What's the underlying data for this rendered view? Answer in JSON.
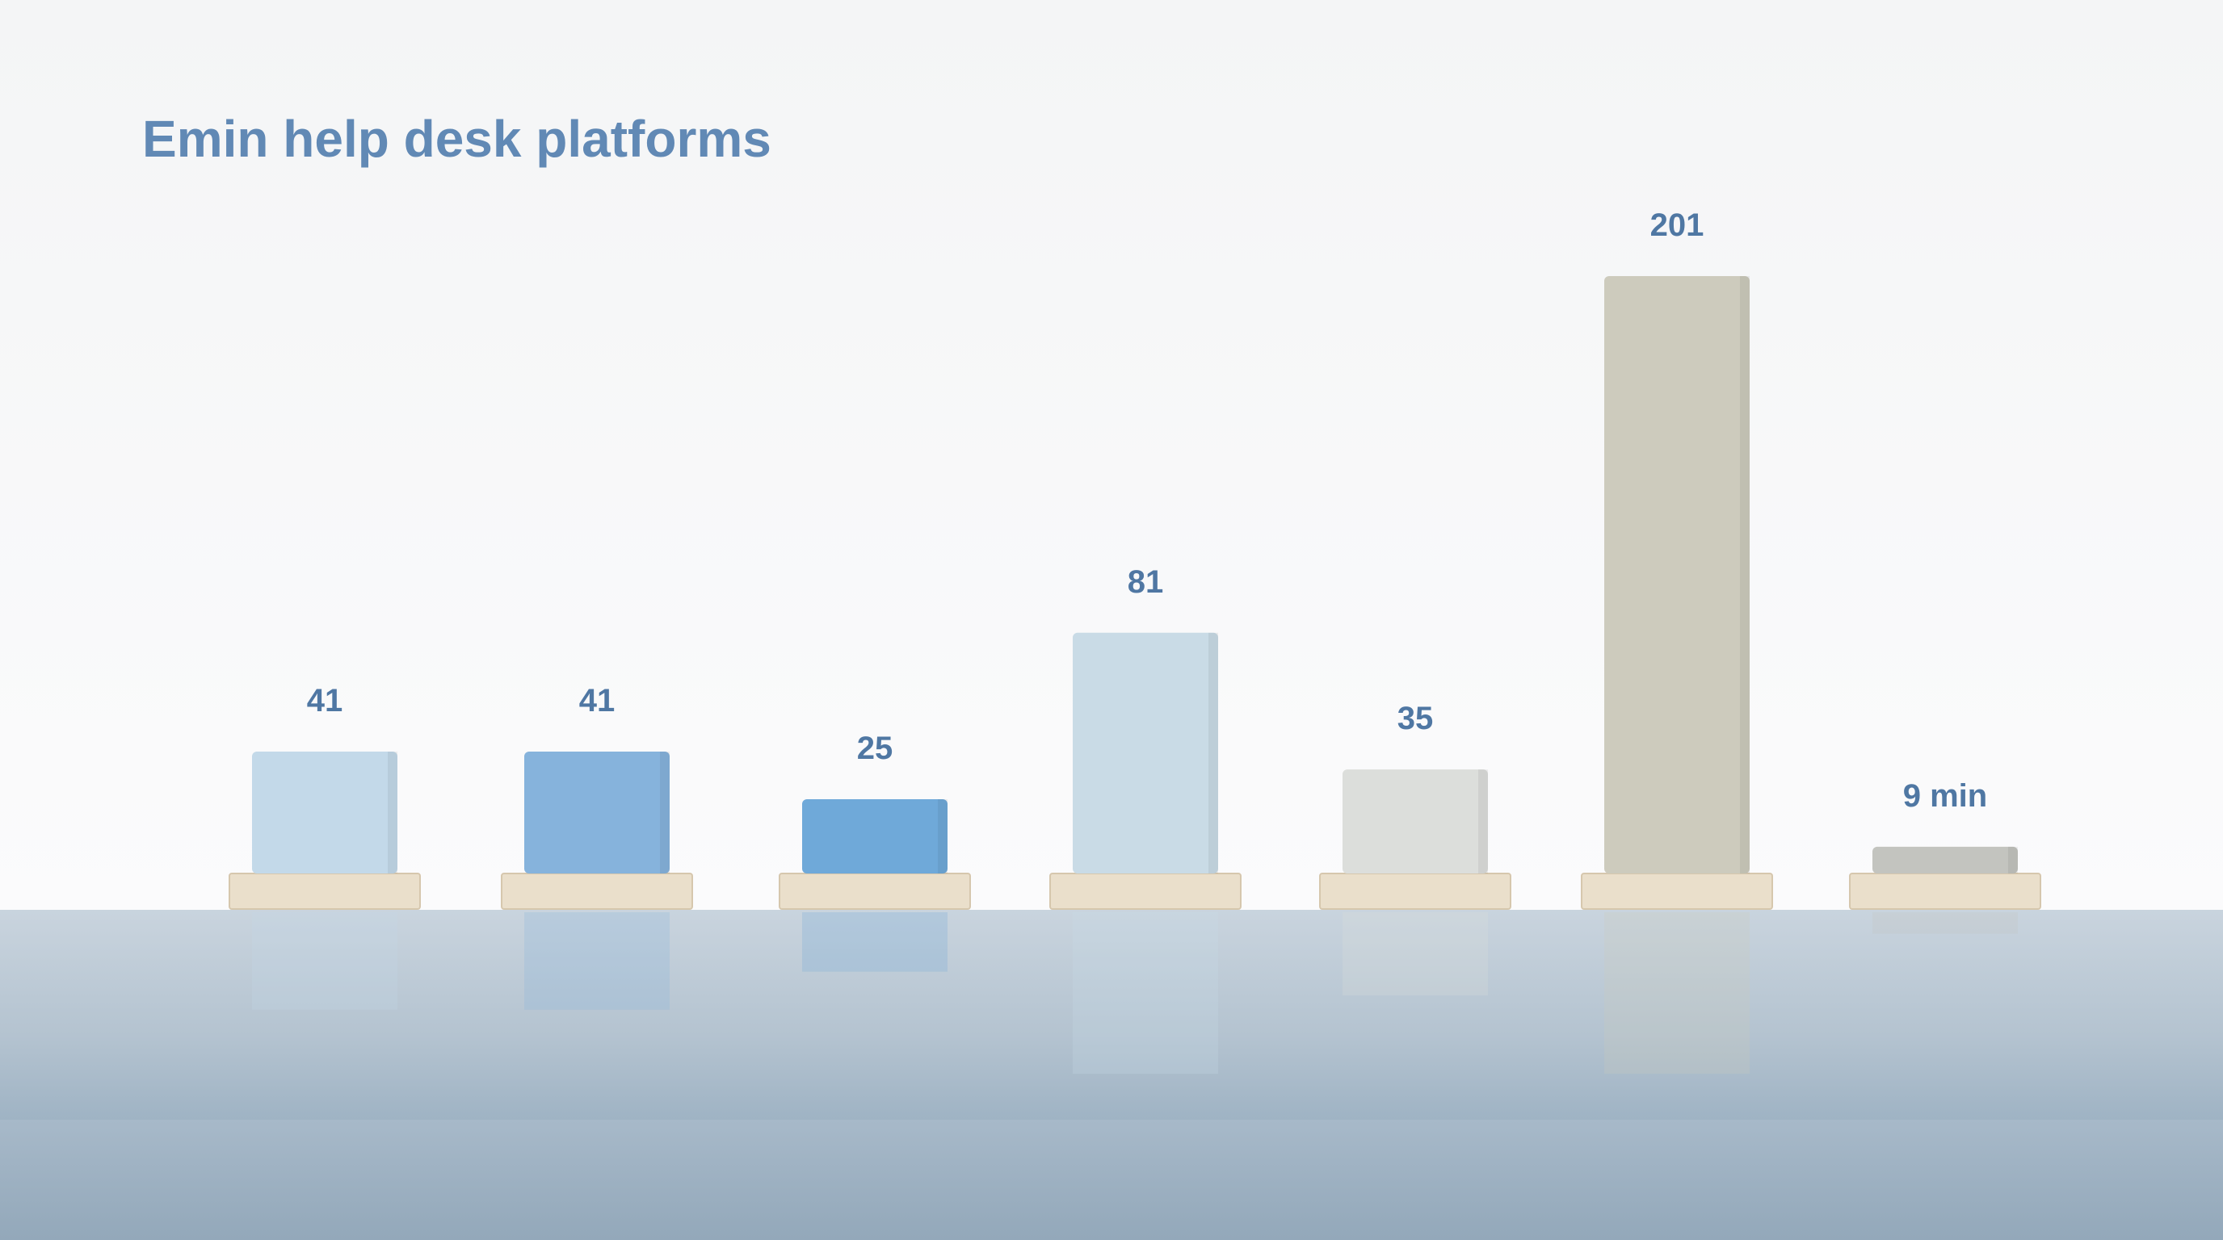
{
  "chart_data": {
    "type": "bar",
    "title": "Emin help desk platforms",
    "values": [
      41,
      41,
      25,
      81,
      35,
      201,
      9
    ],
    "value_labels": [
      "41",
      "41",
      "25",
      "81",
      "35",
      "201",
      "9 min"
    ],
    "colors": [
      "#c3d9e9",
      "#86b3dc",
      "#6fa9d9",
      "#c9dbe6",
      "#dcdedb",
      "#cdcbbd",
      "#c3c4bf"
    ]
  }
}
